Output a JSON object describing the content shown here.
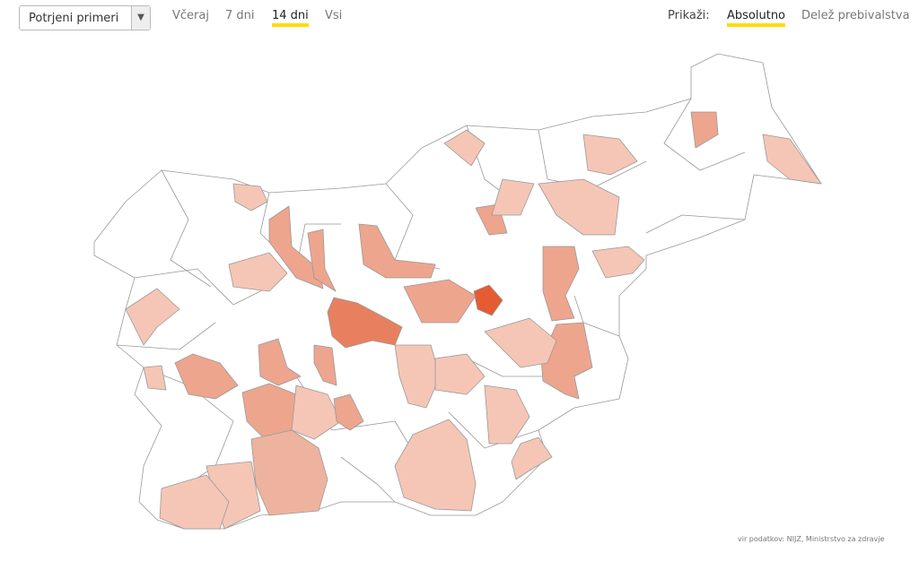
{
  "filters": {
    "select": "Potrjeni primeri",
    "periods": [
      "Včeraj",
      "7 dni",
      "14 dni",
      "Vsi"
    ],
    "show_label": "Prikaži:",
    "show_options": [
      "Absolutno",
      "Delež prebivalstva"
    ]
  },
  "source": "vir podatkov: NIJZ, Ministrstvo za zdravje"
}
